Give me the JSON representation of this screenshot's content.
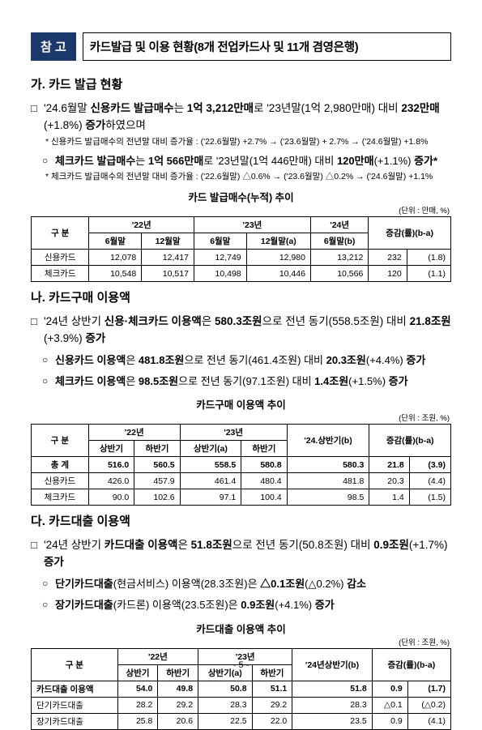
{
  "header": {
    "tag": "참 고",
    "title": "카드발급 및 이용 현황(8개 전업카드사 및 11개 겸영은행)"
  },
  "sec_a": {
    "heading": "가. 카드 발급 현황",
    "p1_a": "'24.6월말 ",
    "p1_b": "신용카드 발급매수",
    "p1_c": "는 ",
    "p1_d": "1억 3,212만매",
    "p1_e": "로 '23년말(1억 2,980만매) 대비 ",
    "p1_f": "232만매",
    "p1_g": "(+1.8%) ",
    "p1_h": "증가",
    "p1_i": "하였으며",
    "fn1": "* 신용카드 발급매수의 전년말 대비 증가율 : ('22.6월말) +2.7% → ('23.6월말) + 2.7% → ('24.6월말) +1.8%",
    "p2_a": "체크카드 발급매수",
    "p2_b": "는 ",
    "p2_c": "1억 566만매",
    "p2_d": "로 '23년말(1억 446만매) 대비 ",
    "p2_e": "120만매",
    "p2_f": "(+1.1%) ",
    "p2_g": "증가*",
    "fn2": "* 체크카드 발급매수의 전년말 대비 증가율 :  ('22.6월말) △0.6% → ('23.6월말) △0.2% → ('24.6월말) +1.1%"
  },
  "table1": {
    "title": "카드 발급매수(누적) 추이",
    "unit": "(단위 : 만매, %)",
    "head": {
      "c0": "구 분",
      "y22": "'22년",
      "y23": "'23년",
      "y24": "'24년",
      "diff": "증감(률)(b-a)",
      "h1": "6월말",
      "h2": "12월말",
      "h3": "6월말",
      "h4": "12월말(a)",
      "h5": "6월말(b)"
    },
    "rows": [
      {
        "label": "신용카드",
        "v1": "12,078",
        "v2": "12,417",
        "v3": "12,749",
        "v4": "12,980",
        "v5": "13,212",
        "d1": "232",
        "d2": "(1.8)"
      },
      {
        "label": "체크카드",
        "v1": "10,548",
        "v2": "10,517",
        "v3": "10,498",
        "v4": "10,446",
        "v5": "10,566",
        "d1": "120",
        "d2": "(1.1)"
      }
    ]
  },
  "sec_b": {
    "heading": "나. 카드구매 이용액",
    "p1_a": "'24년 상반기 ",
    "p1_b": "신용·체크카드 이용액",
    "p1_c": "은 ",
    "p1_d": "580.3조원",
    "p1_e": "으로 전년 동기(558.5조원) 대비 ",
    "p1_f": "21.8조원",
    "p1_g": "(+3.9%) ",
    "p1_h": "증가",
    "s1_a": "신용카드 이용액",
    "s1_b": "은 ",
    "s1_c": "481.8조원",
    "s1_d": "으로 전년 동기(461.4조원) 대비 ",
    "s1_e": "20.3조원",
    "s1_f": "(+4.4%) ",
    "s1_g": "증가",
    "s2_a": "체크카드 이용액",
    "s2_b": "은 ",
    "s2_c": "98.5조원",
    "s2_d": "으로 전년 동기(97.1조원) 대비 ",
    "s2_e": "1.4조원",
    "s2_f": "(+1.5%) ",
    "s2_g": "증가"
  },
  "table2": {
    "title": "카드구매 이용액 추이",
    "unit": "(단위 : 조원, %)",
    "head": {
      "c0": "구 분",
      "y22": "'22년",
      "y23": "'23년",
      "y24": "'24.상반기(b)",
      "diff": "증감(률)(b-a)",
      "h1": "상반기",
      "h2": "하반기",
      "h3": "상반기(a)",
      "h4": "하반기"
    },
    "rows": [
      {
        "label": "총 계",
        "v1": "516.0",
        "v2": "560.5",
        "v3": "558.5",
        "v4": "580.8",
        "v5": "580.3",
        "d1": "21.8",
        "d2": "(3.9)",
        "bold": true
      },
      {
        "label": "신용카드",
        "v1": "426.0",
        "v2": "457.9",
        "v3": "461.4",
        "v4": "480.4",
        "v5": "481.8",
        "d1": "20.3",
        "d2": "(4.4)"
      },
      {
        "label": "체크카드",
        "v1": "90.0",
        "v2": "102.6",
        "v3": "97.1",
        "v4": "100.4",
        "v5": "98.5",
        "d1": "1.4",
        "d2": "(1.5)"
      }
    ]
  },
  "sec_c": {
    "heading": "다. 카드대출 이용액",
    "p1_a": "'24년 상반기 ",
    "p1_b": "카드대출 이용액",
    "p1_c": "은 ",
    "p1_d": "51.8조원",
    "p1_e": "으로 전년 동기(50.8조원) 대비 ",
    "p1_f": "0.9조원",
    "p1_g": "(+1.7%) ",
    "p1_h": "증가",
    "s1_a": "단기카드대출",
    "s1_b": "(현금서비스) 이용액(28.3조원)은 ",
    "s1_c": "△0.1조원",
    "s1_d": "(△0.2%) ",
    "s1_e": "감소",
    "s2_a": "장기카드대출",
    "s2_b": "(카드론) 이용액(23.5조원)은 ",
    "s2_c": "0.9조원",
    "s2_d": "(+4.1%) ",
    "s2_e": "증가"
  },
  "table3": {
    "title": "카드대출 이용액 추이",
    "unit": "(단위 : 조원, %)",
    "head": {
      "c0": "구 분",
      "y22": "'22년",
      "y23": "'23년",
      "y24": "'24년상반기(b)",
      "diff": "증감(률)(b-a)",
      "h1": "상반기",
      "h2": "하반기",
      "h3": "상반기(a)",
      "h4": "하반기"
    },
    "rows": [
      {
        "label": "카드대출 이용액",
        "v1": "54.0",
        "v2": "49.8",
        "v3": "50.8",
        "v4": "51.1",
        "v5": "51.8",
        "d1": "0.9",
        "d2": "(1.7)",
        "bold": true
      },
      {
        "label": "단기카드대출",
        "v1": "28.2",
        "v2": "29.2",
        "v3": "28.3",
        "v4": "29.2",
        "v5": "28.3",
        "d1": "△0.1",
        "d2": "(△0.2)"
      },
      {
        "label": "장기카드대출",
        "v1": "25.8",
        "v2": "20.6",
        "v3": "22.5",
        "v4": "22.0",
        "v5": "23.5",
        "d1": "0.9",
        "d2": "(4.1)"
      }
    ]
  },
  "page": "- 5 -"
}
